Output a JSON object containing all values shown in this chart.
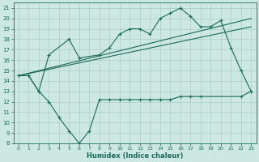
{
  "background_color": "#cce8e0",
  "grid_color": "#aacfc8",
  "line_color": "#1a6b5a",
  "x_label": "Humidex (Indice chaleur)",
  "xlim": [
    -0.5,
    23.5
  ],
  "ylim": [
    8,
    21.5
  ],
  "yticks": [
    8,
    9,
    10,
    11,
    12,
    13,
    14,
    15,
    16,
    17,
    18,
    19,
    20,
    21
  ],
  "xticks": [
    0,
    1,
    2,
    3,
    4,
    5,
    6,
    7,
    8,
    9,
    10,
    11,
    12,
    13,
    14,
    15,
    16,
    17,
    18,
    19,
    20,
    21,
    22,
    23
  ],
  "trend1_x": [
    0,
    23
  ],
  "trend1_y": [
    14.5,
    20.0
  ],
  "trend2_x": [
    0,
    23
  ],
  "trend2_y": [
    14.5,
    19.2
  ],
  "upper_x": [
    0,
    1,
    2,
    3,
    5,
    6,
    8,
    9,
    10,
    11,
    12,
    13,
    14,
    15,
    16,
    17,
    18,
    19,
    20,
    21,
    22,
    23
  ],
  "upper_y": [
    14.5,
    14.5,
    13.0,
    16.5,
    18.0,
    16.2,
    16.5,
    17.2,
    18.5,
    19.0,
    19.0,
    18.5,
    20.0,
    20.5,
    21.0,
    20.2,
    19.2,
    19.2,
    19.8,
    17.2,
    15.0,
    13.0
  ],
  "lower_x": [
    0,
    1,
    2,
    3,
    4,
    5,
    6,
    7,
    8,
    9,
    10,
    11,
    12,
    13,
    14,
    15,
    16,
    17,
    18,
    22,
    23
  ],
  "lower_y": [
    14.5,
    14.5,
    13.0,
    12.0,
    10.5,
    9.2,
    8.0,
    9.2,
    12.2,
    12.2,
    12.2,
    12.2,
    12.2,
    12.2,
    12.2,
    12.2,
    12.5,
    12.5,
    12.5,
    12.5,
    13.0
  ]
}
